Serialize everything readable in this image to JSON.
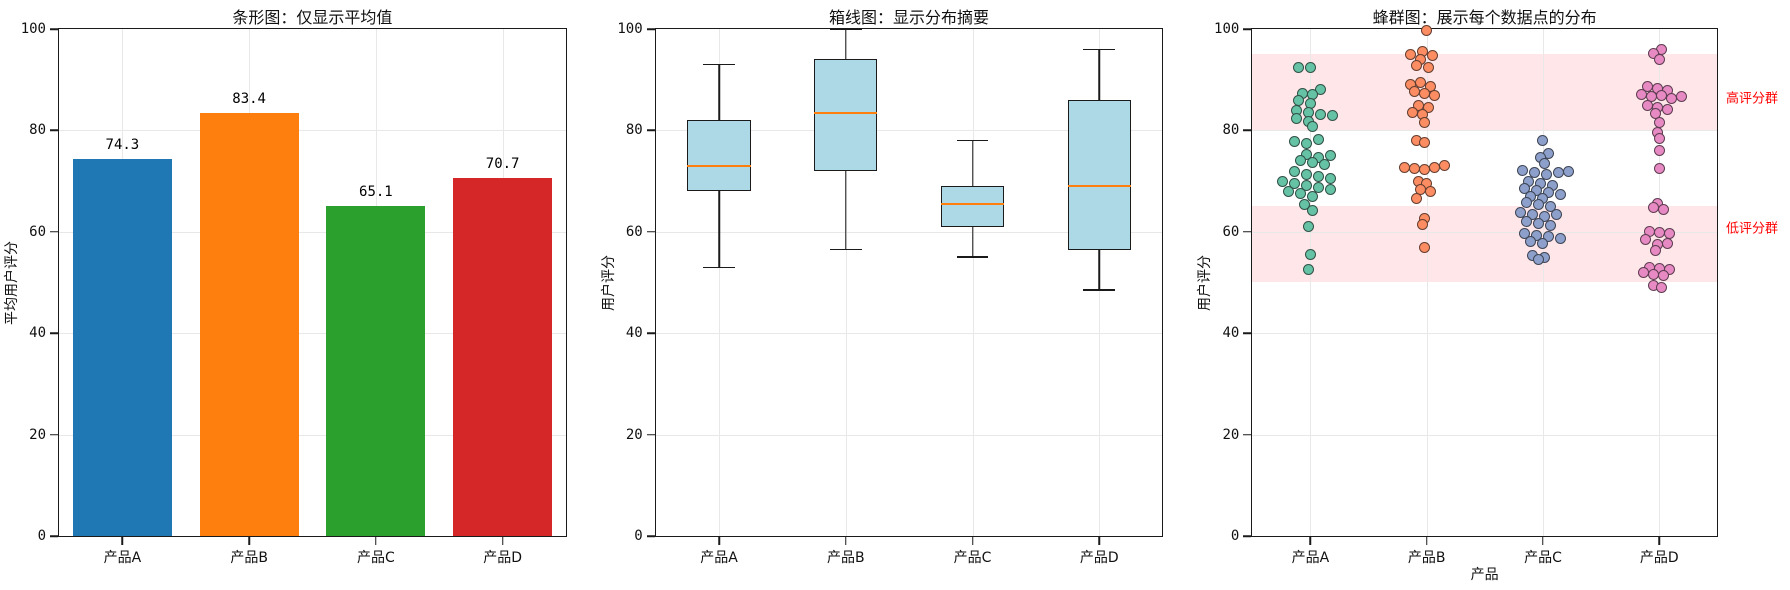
{
  "figure": {
    "background": "#ffffff"
  },
  "chart_data": [
    {
      "type": "bar",
      "title": "条形图：仅显示平均值",
      "ylabel": "平均用户评分",
      "categories": [
        "产品A",
        "产品B",
        "产品C",
        "产品D"
      ],
      "values": [
        74.3,
        83.4,
        65.1,
        70.7
      ],
      "value_labels": [
        "74.3",
        "83.4",
        "65.1",
        "70.7"
      ],
      "bar_colors": [
        "#1f77b4",
        "#ff7f0e",
        "#2ca02c",
        "#d62728"
      ],
      "ylim": [
        0,
        100
      ],
      "yticks": [
        0,
        20,
        40,
        60,
        80,
        100
      ],
      "grid": true,
      "legend": "none"
    },
    {
      "type": "box",
      "title": "箱线图：显示分布摘要",
      "ylabel": "用户评分",
      "categories": [
        "产品A",
        "产品B",
        "产品C",
        "产品D"
      ],
      "boxes": [
        {
          "whisker_low": 53,
          "q1": 68,
          "median": 73,
          "q3": 82,
          "whisker_high": 93
        },
        {
          "whisker_low": 56.5,
          "q1": 72,
          "median": 83.5,
          "q3": 94,
          "whisker_high": 100
        },
        {
          "whisker_low": 55,
          "q1": 61,
          "median": 65.5,
          "q3": 69,
          "whisker_high": 78
        },
        {
          "whisker_low": 48.5,
          "q1": 56.5,
          "median": 69,
          "q3": 86,
          "whisker_high": 96
        }
      ],
      "box_fill": "#add8e6",
      "median_color": "#ff7f0e",
      "ylim": [
        0,
        100
      ],
      "yticks": [
        0,
        20,
        40,
        60,
        80,
        100
      ],
      "grid": true,
      "legend": "none"
    },
    {
      "type": "swarm",
      "title": "蜂群图：展示每个数据点的分布",
      "xlabel": "产品",
      "ylabel": "用户评分",
      "categories": [
        "产品A",
        "产品B",
        "产品C",
        "产品D"
      ],
      "point_colors": [
        "#66c2a5",
        "#fc8d62",
        "#8da0cb",
        "#e78ac3"
      ],
      "bands": [
        {
          "name": "high-score-band",
          "from": 80,
          "to": 95,
          "label": "高评分群",
          "label_value": 86.5,
          "color": "rgba(255,182,193,0.35)",
          "label_color": "#ff0000"
        },
        {
          "name": "low-score-band",
          "from": 50,
          "to": 65,
          "label": "低评分群",
          "label_value": 61,
          "color": "rgba(255,182,193,0.35)",
          "label_color": "#ff0000"
        }
      ],
      "series": [
        {
          "name": "产品A",
          "points": [
            [
              -12,
              92.5
            ],
            [
              0,
              92.5
            ],
            [
              10,
              88
            ],
            [
              -8,
              87.3
            ],
            [
              2,
              87
            ],
            [
              -12,
              85.8
            ],
            [
              0,
              85.3
            ],
            [
              -14,
              84
            ],
            [
              -2,
              83.6
            ],
            [
              10,
              83.2
            ],
            [
              22,
              83
            ],
            [
              -14,
              82.3
            ],
            [
              -2,
              81.8
            ],
            [
              2,
              80.7
            ],
            [
              -16,
              77.8
            ],
            [
              -4,
              77.5
            ],
            [
              8,
              78.2
            ],
            [
              -4,
              75.2
            ],
            [
              8,
              74.7
            ],
            [
              20,
              75
            ],
            [
              -10,
              74
            ],
            [
              2,
              73.6
            ],
            [
              14,
              73.2
            ],
            [
              -16,
              71.8
            ],
            [
              -4,
              71.4
            ],
            [
              8,
              71
            ],
            [
              20,
              70.6
            ],
            [
              -28,
              70
            ],
            [
              -16,
              69.6
            ],
            [
              -4,
              69.2
            ],
            [
              8,
              68.8
            ],
            [
              20,
              68.4
            ],
            [
              -22,
              68
            ],
            [
              -10,
              67.6
            ],
            [
              2,
              67
            ],
            [
              -6,
              65.3
            ],
            [
              2,
              64.2
            ],
            [
              -2,
              61
            ],
            [
              0,
              55.5
            ],
            [
              -2,
              52.5
            ]
          ]
        },
        {
          "name": "产品B",
          "points": [
            [
              0,
              99.7
            ],
            [
              -4,
              95.5
            ],
            [
              -16,
              95
            ],
            [
              6,
              94.7
            ],
            [
              -6,
              94
            ],
            [
              -10,
              92.8
            ],
            [
              2,
              92.4
            ],
            [
              -6,
              89.5
            ],
            [
              -16,
              89
            ],
            [
              4,
              88.6
            ],
            [
              -12,
              87.6
            ],
            [
              -2,
              87.2
            ],
            [
              8,
              86.8
            ],
            [
              -8,
              85
            ],
            [
              2,
              84.6
            ],
            [
              -14,
              83.6
            ],
            [
              -4,
              83.2
            ],
            [
              -2,
              81.5
            ],
            [
              -10,
              78
            ],
            [
              -2,
              77.6
            ],
            [
              -22,
              72.7
            ],
            [
              -12,
              72.4
            ],
            [
              -2,
              72.2
            ],
            [
              8,
              72.6
            ],
            [
              18,
              73
            ],
            [
              -8,
              70
            ],
            [
              0,
              69.5
            ],
            [
              -6,
              68.4
            ],
            [
              4,
              68
            ],
            [
              -10,
              66.5
            ],
            [
              -2,
              62.6
            ],
            [
              -4,
              61.5
            ],
            [
              -2,
              57
            ]
          ]
        },
        {
          "name": "产品C",
          "points": [
            [
              0,
              78
            ],
            [
              6,
              75.5
            ],
            [
              -2,
              74.7
            ],
            [
              2,
              73.5
            ],
            [
              -20,
              72
            ],
            [
              -8,
              71.6
            ],
            [
              4,
              71.3
            ],
            [
              16,
              71.6
            ],
            [
              26,
              71.9
            ],
            [
              -14,
              70
            ],
            [
              -2,
              69.6
            ],
            [
              10,
              69.2
            ],
            [
              -18,
              68.6
            ],
            [
              -6,
              68.2
            ],
            [
              6,
              67.8
            ],
            [
              18,
              67.4
            ],
            [
              -12,
              67
            ],
            [
              0,
              66.6
            ],
            [
              -16,
              65.8
            ],
            [
              -4,
              65.4
            ],
            [
              8,
              65
            ],
            [
              -22,
              63.8
            ],
            [
              -10,
              63.4
            ],
            [
              2,
              63
            ],
            [
              14,
              63.4
            ],
            [
              -16,
              62
            ],
            [
              -4,
              61.6
            ],
            [
              8,
              61.2
            ],
            [
              -18,
              59.6
            ],
            [
              -6,
              59.2
            ],
            [
              6,
              59
            ],
            [
              18,
              58.7
            ],
            [
              -12,
              58
            ],
            [
              0,
              57.6
            ],
            [
              -10,
              55.4
            ],
            [
              2,
              55
            ],
            [
              -4,
              54.6
            ]
          ]
        },
        {
          "name": "产品D",
          "points": [
            [
              2,
              96
            ],
            [
              -6,
              95.2
            ],
            [
              0,
              94
            ],
            [
              -12,
              88.6
            ],
            [
              -2,
              88.2
            ],
            [
              8,
              87.8
            ],
            [
              -18,
              87
            ],
            [
              -8,
              86.6
            ],
            [
              2,
              86.8
            ],
            [
              12,
              86.3
            ],
            [
              22,
              86.6
            ],
            [
              -12,
              85
            ],
            [
              -2,
              84.6
            ],
            [
              8,
              84.2
            ],
            [
              -4,
              83.4
            ],
            [
              0,
              81.5
            ],
            [
              -2,
              79.5
            ],
            [
              0,
              78.5
            ],
            [
              0,
              76
            ],
            [
              0,
              72.5
            ],
            [
              -2,
              65.5
            ],
            [
              -6,
              64.8
            ],
            [
              4,
              64.4
            ],
            [
              -10,
              60
            ],
            [
              0,
              59.8
            ],
            [
              10,
              59.6
            ],
            [
              -14,
              58.4
            ],
            [
              -2,
              57.4
            ],
            [
              8,
              57.6
            ],
            [
              -4,
              56.4
            ],
            [
              -10,
              53
            ],
            [
              0,
              52.8
            ],
            [
              10,
              52.6
            ],
            [
              -16,
              52
            ],
            [
              -6,
              51.5
            ],
            [
              4,
              51.3
            ],
            [
              -6,
              49.4
            ],
            [
              2,
              49
            ]
          ]
        }
      ],
      "ylim": [
        0,
        100
      ],
      "yticks": [
        0,
        20,
        40,
        60,
        80,
        100
      ],
      "grid": true,
      "legend": "none"
    }
  ]
}
